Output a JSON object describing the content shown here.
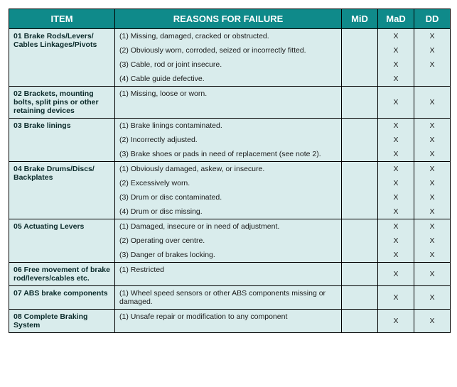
{
  "headers": {
    "item": "ITEM",
    "reasons": "REASONS FOR FAILURE",
    "mid": "MiD",
    "mad": "MaD",
    "dd": "DD"
  },
  "groups": [
    {
      "item": "01 Brake Rods/Levers/ Cables Linkages/Pivots",
      "rows": [
        {
          "reason": "(1)  Missing, damaged, cracked or obstructed.",
          "mid": "",
          "mad": "X",
          "dd": "X"
        },
        {
          "reason": "(2)  Obviously worn, corroded, seized or incorrectly fitted.",
          "mid": "",
          "mad": "X",
          "dd": "X"
        },
        {
          "reason": "(3)  Cable, rod or joint insecure.",
          "mid": "",
          "mad": "X",
          "dd": "X"
        },
        {
          "reason": "(4)  Cable guide defective.",
          "mid": "",
          "mad": "X",
          "dd": ""
        }
      ]
    },
    {
      "item": "02 Brackets, mounting bolts, split pins or other retaining devices",
      "rows": [
        {
          "reason": "(1)  Missing, loose or worn.",
          "mid": "",
          "mad": "X",
          "dd": "X"
        }
      ]
    },
    {
      "item": "03 Brake linings",
      "rows": [
        {
          "reason": "(1)  Brake linings contaminated.",
          "mid": "",
          "mad": "X",
          "dd": "X"
        },
        {
          "reason": "(2)  Incorrectly adjusted.",
          "mid": "",
          "mad": "X",
          "dd": "X"
        },
        {
          "reason": "(3)  Brake shoes or pads in need of replacement (see note 2).",
          "mid": "",
          "mad": "X",
          "dd": "X"
        }
      ]
    },
    {
      "item": "04 Brake Drums/Discs/ Backplates",
      "rows": [
        {
          "reason": "(1)  Obviously damaged, askew, or insecure.",
          "mid": "",
          "mad": "X",
          "dd": "X"
        },
        {
          "reason": "(2)  Excessively worn.",
          "mid": "",
          "mad": "X",
          "dd": "X"
        },
        {
          "reason": "(3)  Drum or disc contaminated.",
          "mid": "",
          "mad": "X",
          "dd": "X"
        },
        {
          "reason": "(4)  Drum or disc missing.",
          "mid": "",
          "mad": "X",
          "dd": "X"
        }
      ]
    },
    {
      "item": "05 Actuating Levers",
      "rows": [
        {
          "reason": "(1)  Damaged, insecure or in need of adjustment.",
          "mid": "",
          "mad": "X",
          "dd": "X"
        },
        {
          "reason": "(2)  Operating over centre.",
          "mid": "",
          "mad": "X",
          "dd": "X"
        },
        {
          "reason": "(3)  Danger of brakes locking.",
          "mid": "",
          "mad": "X",
          "dd": "X"
        }
      ]
    },
    {
      "item": "06 Free movement of brake rod/levers/cables etc.",
      "rows": [
        {
          "reason": "(1)  Restricted",
          "mid": "",
          "mad": "X",
          "dd": "X"
        }
      ]
    },
    {
      "item": "07 ABS brake components",
      "rows": [
        {
          "reason": "(1)  Wheel speed sensors or other ABS components missing or damaged.",
          "mid": "",
          "mad": "X",
          "dd": "X"
        }
      ]
    },
    {
      "item": "08 Complete Braking System",
      "rows": [
        {
          "reason": "(1)  Unsafe repair or modification to any component",
          "mid": "",
          "mad": "X",
          "dd": "X"
        }
      ]
    }
  ]
}
